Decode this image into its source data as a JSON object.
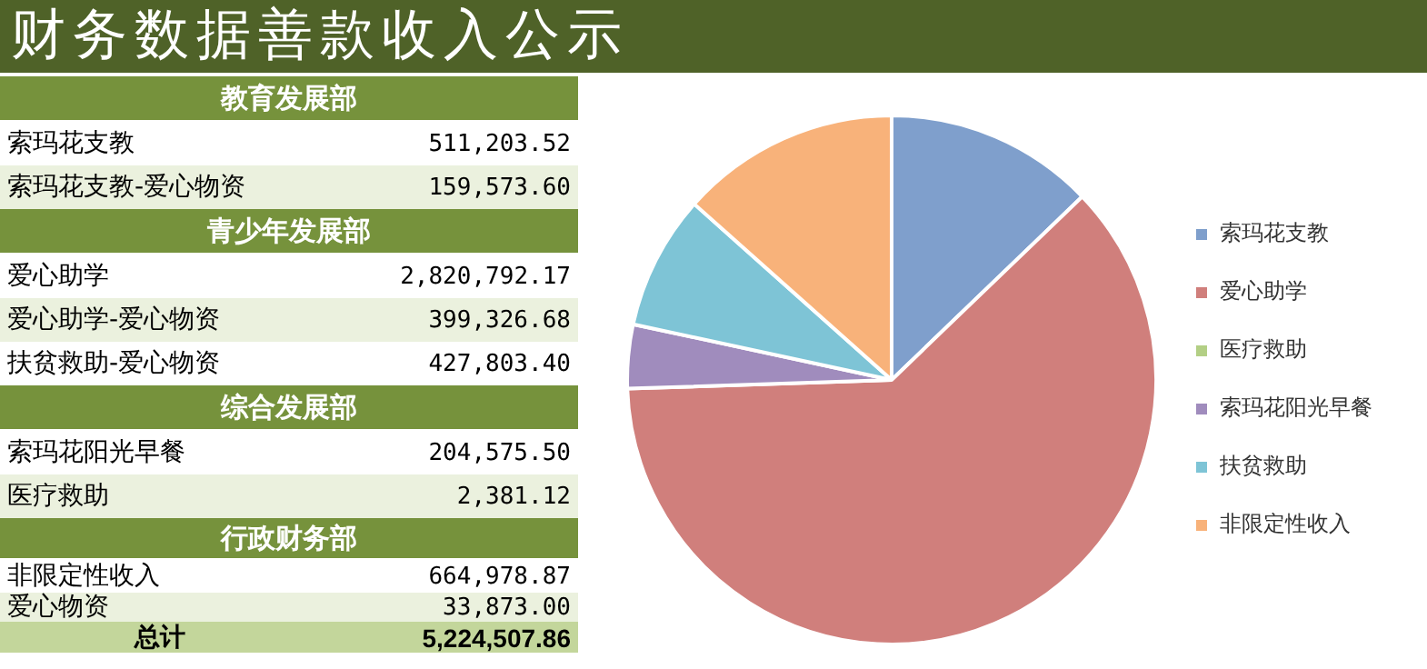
{
  "chart_data": [
    {
      "type": "other",
      "title": "财务数据善款收入公示",
      "annotations": [
        "教育发展部",
        "索玛花支教",
        "511,203.52",
        "索玛花支教-爱心物资",
        "159,573.60",
        "青少年发展部",
        "爱心助学",
        "2,820,792.17",
        "爱心助学-爱心物资",
        "399,326.68",
        "扶贫救助-爱心物资",
        "427,803.40",
        "综合发展部",
        "索玛花阳光早餐",
        "204,575.50",
        "医疗救助",
        "2,381.12",
        "行政财务部",
        "非限定性收入",
        "664,978.87",
        "爱心物资",
        "33,873.00",
        "总计",
        "5,224,507.86"
      ]
    },
    {
      "type": "pie",
      "categories": [
        "索玛花支教",
        "爱心助学",
        "医疗救助",
        "索玛花阳光早餐",
        "扶贫救助",
        "非限定性收入"
      ],
      "values": [
        12.8,
        61.6,
        null,
        3.9,
        8.2,
        13.4
      ],
      "colors": [
        "#7f9fcc",
        "#d07f7c",
        "#b3cf85",
        "#a08cbd",
        "#7ec4d6",
        "#f8b27a"
      ],
      "legend": "right"
    }
  ]
}
